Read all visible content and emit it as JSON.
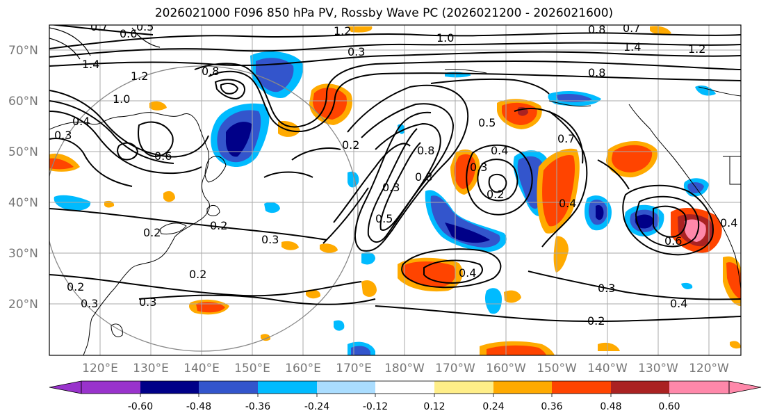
{
  "title": "2026021000 F096 850 hPa PV, Rossby Wave PC (2026021200 - 2026021600)",
  "lat_labels": [
    "70°N",
    "60°N",
    "50°N",
    "40°N",
    "30°N",
    "20°N"
  ],
  "lon_labels": [
    "120°E",
    "130°E",
    "140°E",
    "150°E",
    "160°E",
    "170°E",
    "180°W",
    "170°W",
    "160°W",
    "150°W",
    "140°W",
    "130°W",
    "120°W"
  ],
  "colorbar": {
    "colors": [
      "#9933cc",
      "#000088",
      "#3355cc",
      "#00bbff",
      "#aaddff",
      "#ffffff",
      "#ffee88",
      "#ffaa00",
      "#ff4400",
      "#aa2222",
      "#ff88aa"
    ],
    "tick_labels": [
      "-0.60",
      "-0.48",
      "-0.36",
      "-0.24",
      "-0.12",
      "0.12",
      "0.24",
      "0.36",
      "0.48",
      "0.60"
    ]
  },
  "contour_labels": [
    "1.2",
    "0.7",
    "0.6",
    "0.5",
    "1.0",
    "0.8",
    "0.7",
    "1.2",
    "1.4",
    "1.4",
    "1.2",
    "0.3",
    "0.8",
    "0.8",
    "0.5",
    "0.6",
    "0.4",
    "1.0",
    "0.2",
    "0.8",
    "0.3",
    "0.5",
    "0.7",
    "0.4",
    "0.2",
    "0.8",
    "0.3",
    "0.2",
    "0.4",
    "0.4",
    "0.3",
    "0.6",
    "0.2",
    "0.3",
    "0.2",
    "0.3",
    "0.4",
    "0.3",
    "0.2",
    "0.4",
    "0.2",
    "0.3"
  ]
}
